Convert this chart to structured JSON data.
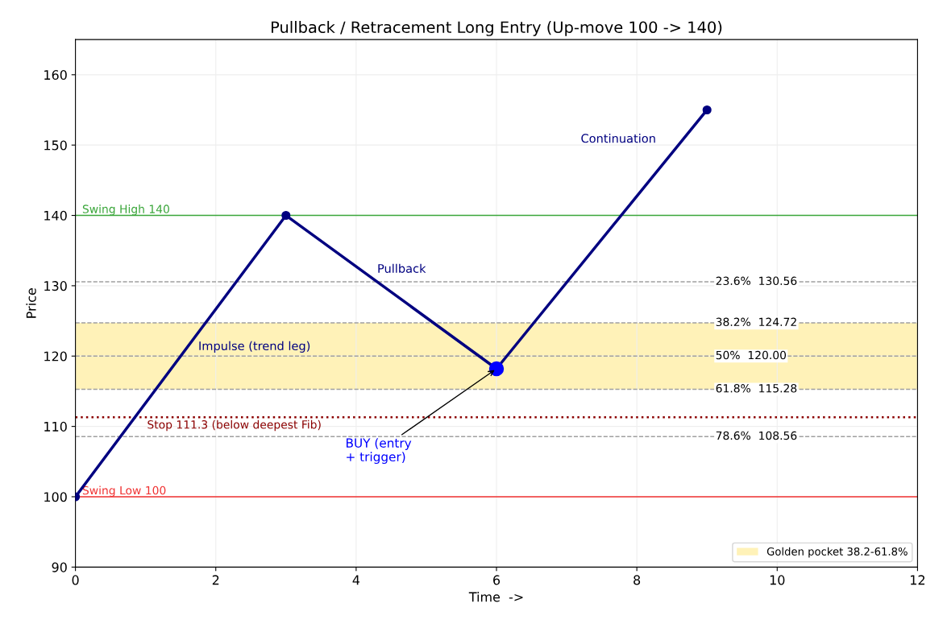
{
  "chart_data": {
    "type": "line",
    "title": "Pullback / Retracement Long Entry (Up-move 100 -> 140)",
    "xlabel": "Time  ->",
    "ylabel": "Price",
    "series": [
      {
        "color": "#000080",
        "x": [
          0,
          3,
          6,
          9
        ],
        "values": [
          100,
          140,
          118.2,
          155
        ],
        "marker": "circle"
      },
      {
        "type": "scatter",
        "color": "#0000ff",
        "x": [
          6
        ],
        "values": [
          118.2
        ],
        "marker": "circle"
      }
    ],
    "xlim": [
      0,
      12
    ],
    "ylim": [
      90,
      165
    ],
    "xticks": [
      0,
      2,
      4,
      6,
      8,
      10,
      12
    ],
    "yticks": [
      90,
      100,
      110,
      120,
      130,
      140,
      150,
      160
    ],
    "ref_lines": [
      {
        "axis": "y",
        "value": 140,
        "label": "Swing High 140",
        "color": "#3aa63a",
        "line_style": "solid"
      },
      {
        "axis": "y",
        "value": 100,
        "label": "Swing Low 100",
        "color": "#f03030",
        "line_style": "solid"
      },
      {
        "axis": "y",
        "value": 130.56,
        "label": "23.6%  130.56",
        "color": "#a0a0a0",
        "line_style": "dashed"
      },
      {
        "axis": "y",
        "value": 124.72,
        "label": "38.2%  124.72",
        "color": "#a0a0a0",
        "line_style": "dashed"
      },
      {
        "axis": "y",
        "value": 120.0,
        "label": "50%  120.00",
        "color": "#a0a0a0",
        "line_style": "dashed"
      },
      {
        "axis": "y",
        "value": 115.28,
        "label": "61.8%  115.28",
        "color": "#a0a0a0",
        "line_style": "dashed"
      },
      {
        "axis": "y",
        "value": 108.56,
        "label": "78.6%  108.56",
        "color": "#a0a0a0",
        "line_style": "dashed"
      },
      {
        "axis": "y",
        "value": 111.3,
        "label": "Stop 111.3 (below deepest Fib)",
        "color": "#8b0000",
        "line_style": "dotted"
      }
    ],
    "bands": [
      {
        "axis": "y",
        "from": 115.28,
        "to": 124.72,
        "label": "Golden pocket 38.2-61.8%",
        "color": "#fff2b8"
      }
    ],
    "annotations": [
      "Impulse (trend leg)",
      "Pullback",
      "Continuation",
      {
        "text": "BUY (entry\n+ trigger)",
        "x": 6,
        "y": 118.2
      }
    ],
    "grid": true,
    "legend": "lower right"
  }
}
